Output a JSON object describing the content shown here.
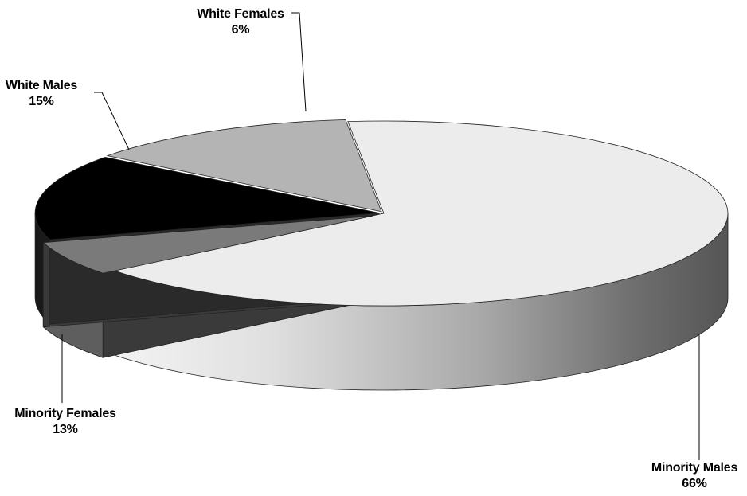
{
  "chart_data": {
    "type": "pie",
    "style": "3d-exploded",
    "slices": [
      {
        "label": "Minority Males",
        "value": 66,
        "display": "66%",
        "color": "#ececec"
      },
      {
        "label": "White Females",
        "value": 6,
        "display": "6%",
        "color": "#7a7a7a"
      },
      {
        "label": "White Males",
        "value": 15,
        "display": "15%",
        "color": "#000000"
      },
      {
        "label": "Minority Females",
        "value": 13,
        "display": "13%",
        "color": "#b4b4b4"
      }
    ]
  }
}
